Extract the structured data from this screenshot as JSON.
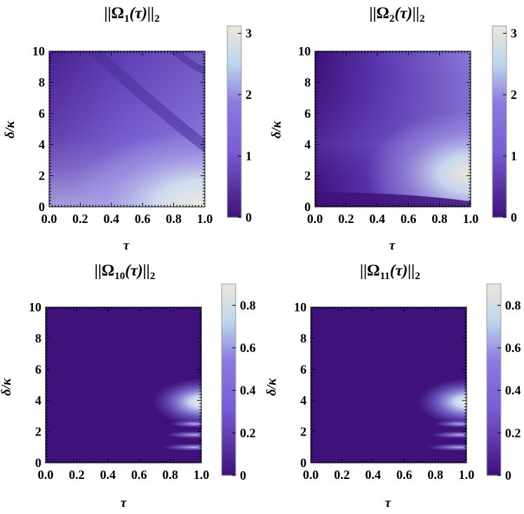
{
  "chart_data": [
    {
      "type": "heatmap",
      "title": {
        "base": "||Ω",
        "sub": "1",
        "tail": "(τ)||",
        "sub2": "2"
      },
      "xlabel": "τ",
      "ylabel": "δ/κ",
      "xlim": [
        0,
        1
      ],
      "ylim": [
        0,
        10
      ],
      "xticks": [
        "0.0",
        "0.2",
        "0.4",
        "0.6",
        "0.8",
        "1.0"
      ],
      "yticks": [
        "0",
        "2",
        "4",
        "6",
        "8",
        "10"
      ],
      "colorbar": {
        "min": 0,
        "max": 3.12,
        "ticks": [
          0,
          1,
          2,
          3
        ],
        "tick_labels": [
          "0",
          "1",
          "2",
          "3"
        ]
      }
    },
    {
      "type": "heatmap",
      "title": {
        "base": "||Ω",
        "sub": "2",
        "tail": "(τ)||",
        "sub2": "2"
      },
      "xlabel": "τ",
      "ylabel": "δ/κ",
      "xlim": [
        0,
        1
      ],
      "ylim": [
        0,
        10
      ],
      "xticks": [
        "0.0",
        "0.2",
        "0.4",
        "0.6",
        "0.8",
        "1.0"
      ],
      "yticks": [
        "0",
        "2",
        "4",
        "6",
        "8",
        "10"
      ],
      "colorbar": {
        "min": 0,
        "max": 3.12,
        "ticks": [
          0,
          1,
          2,
          3
        ],
        "tick_labels": [
          "0",
          "1",
          "2",
          "3"
        ]
      }
    },
    {
      "type": "heatmap",
      "title": {
        "base": "||Ω",
        "sub": "10",
        "tail": "(τ)||",
        "sub2": "2"
      },
      "xlabel": "τ",
      "ylabel": "δ/κ",
      "xlim": [
        0,
        1
      ],
      "ylim": [
        0,
        10
      ],
      "xticks": [
        "0.0",
        "0.2",
        "0.4",
        "0.6",
        "0.8",
        "1.0"
      ],
      "yticks": [
        "0",
        "2",
        "4",
        "6",
        "8",
        "10"
      ],
      "colorbar": {
        "min": 0,
        "max": 0.9,
        "ticks": [
          0,
          0.2,
          0.4,
          0.6,
          0.8
        ],
        "tick_labels": [
          "0",
          "0.2",
          "0.4",
          "0.6",
          "0.8"
        ]
      }
    },
    {
      "type": "heatmap",
      "title": {
        "base": "||Ω",
        "sub": "11",
        "tail": "(τ)||",
        "sub2": "2"
      },
      "xlabel": "τ",
      "ylabel": "δ/κ",
      "xlim": [
        0,
        1
      ],
      "ylim": [
        0,
        10
      ],
      "xticks": [
        "0.0",
        "0.2",
        "0.4",
        "0.6",
        "0.8",
        "1.0"
      ],
      "yticks": [
        "0",
        "2",
        "4",
        "6",
        "8",
        "10"
      ],
      "colorbar": {
        "min": 0,
        "max": 0.9,
        "ticks": [
          0,
          0.2,
          0.4,
          0.6,
          0.8
        ],
        "tick_labels": [
          "0",
          "0.2",
          "0.4",
          "0.6",
          "0.8"
        ]
      }
    }
  ],
  "colors": {
    "low": "#3e1279",
    "mid": "#8b7ae0",
    "high": "#ece7dc"
  }
}
